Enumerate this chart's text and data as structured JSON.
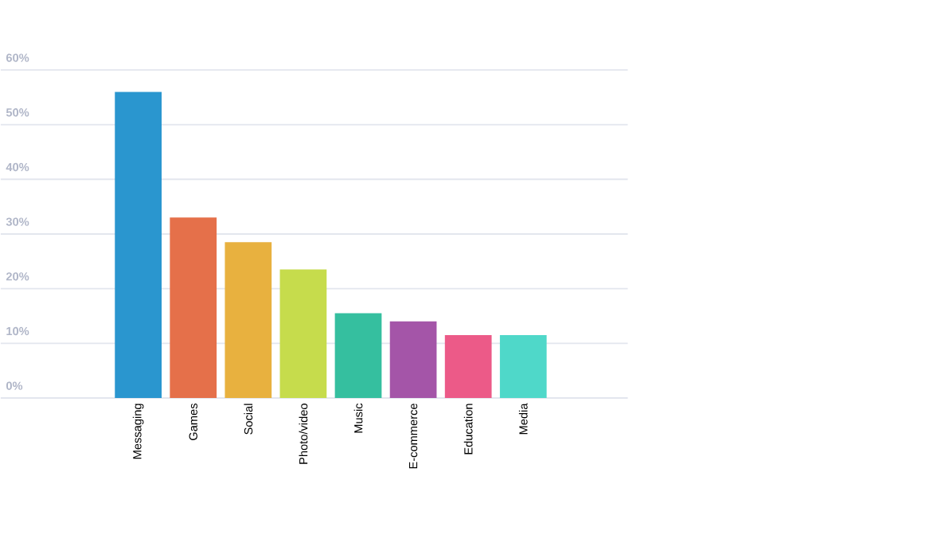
{
  "chart_data": {
    "type": "bar",
    "categories": [
      "Messaging",
      "Games",
      "Social",
      "Photo/video",
      "Music",
      "E-commerce",
      "Education",
      "Media"
    ],
    "values": [
      56,
      33,
      28.5,
      23.5,
      15.5,
      14,
      11.5,
      11.5
    ],
    "colors": [
      "#2a96cf",
      "#e5704a",
      "#e8b13f",
      "#c6dc4c",
      "#35bf9f",
      "#a455a8",
      "#ec5a88",
      "#4fd8c9"
    ],
    "ylim": [
      0,
      60
    ],
    "yticks": [
      {
        "value": 0,
        "label": "0%"
      },
      {
        "value": 10,
        "label": "10%"
      },
      {
        "value": 20,
        "label": "20%"
      },
      {
        "value": 30,
        "label": "30%"
      },
      {
        "value": 40,
        "label": "40%"
      },
      {
        "value": 50,
        "label": "50%"
      },
      {
        "value": 60,
        "label": "60%"
      }
    ],
    "grid": "y"
  }
}
